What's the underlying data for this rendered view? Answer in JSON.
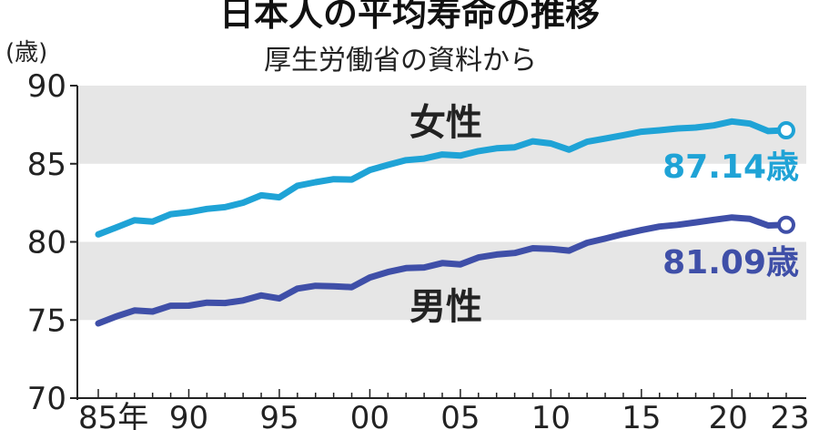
{
  "chart_data": {
    "type": "line",
    "title": "日本人の平均寿命の推移",
    "subtitle": "厚生労働省の資料から",
    "ylabel": "(歳)",
    "ylim": [
      70,
      90
    ],
    "yticks": [
      70,
      75,
      80,
      85,
      90
    ],
    "xlim": [
      1985,
      2023
    ],
    "xticks": [
      {
        "value": 1985,
        "label": "85年"
      },
      {
        "value": 1990,
        "label": "90"
      },
      {
        "value": 1995,
        "label": "95"
      },
      {
        "value": 2000,
        "label": "00"
      },
      {
        "value": 2005,
        "label": "05"
      },
      {
        "value": 2010,
        "label": "10"
      },
      {
        "value": 2015,
        "label": "15"
      },
      {
        "value": 2020,
        "label": "20"
      },
      {
        "value": 2023,
        "label": "23"
      }
    ],
    "bands": [
      [
        85,
        90
      ],
      [
        75,
        80
      ]
    ],
    "x": [
      1985,
      1986,
      1987,
      1988,
      1989,
      1990,
      1991,
      1992,
      1993,
      1994,
      1995,
      1996,
      1997,
      1998,
      1999,
      2000,
      2001,
      2002,
      2003,
      2004,
      2005,
      2006,
      2007,
      2008,
      2009,
      2010,
      2011,
      2012,
      2013,
      2014,
      2015,
      2016,
      2017,
      2018,
      2019,
      2020,
      2021,
      2022,
      2023
    ],
    "series": [
      {
        "name": "女性",
        "color": "#1fa3d6",
        "end_label": "87.14歳",
        "values": [
          80.48,
          80.93,
          81.39,
          81.3,
          81.77,
          81.9,
          82.11,
          82.22,
          82.51,
          82.98,
          82.85,
          83.59,
          83.82,
          84.01,
          83.99,
          84.6,
          84.93,
          85.23,
          85.33,
          85.59,
          85.52,
          85.81,
          85.99,
          86.05,
          86.44,
          86.3,
          85.9,
          86.41,
          86.61,
          86.83,
          87.05,
          87.14,
          87.26,
          87.32,
          87.45,
          87.71,
          87.57,
          87.09,
          87.14
        ]
      },
      {
        "name": "男性",
        "color": "#3f4fa8",
        "end_label": "81.09歳",
        "values": [
          74.78,
          75.23,
          75.61,
          75.54,
          75.91,
          75.92,
          76.11,
          76.09,
          76.25,
          76.57,
          76.38,
          77.01,
          77.19,
          77.16,
          77.1,
          77.72,
          78.07,
          78.32,
          78.36,
          78.64,
          78.56,
          79.0,
          79.19,
          79.29,
          79.59,
          79.55,
          79.44,
          79.94,
          80.21,
          80.5,
          80.75,
          80.98,
          81.09,
          81.25,
          81.41,
          81.56,
          81.47,
          81.05,
          81.09
        ]
      }
    ]
  }
}
